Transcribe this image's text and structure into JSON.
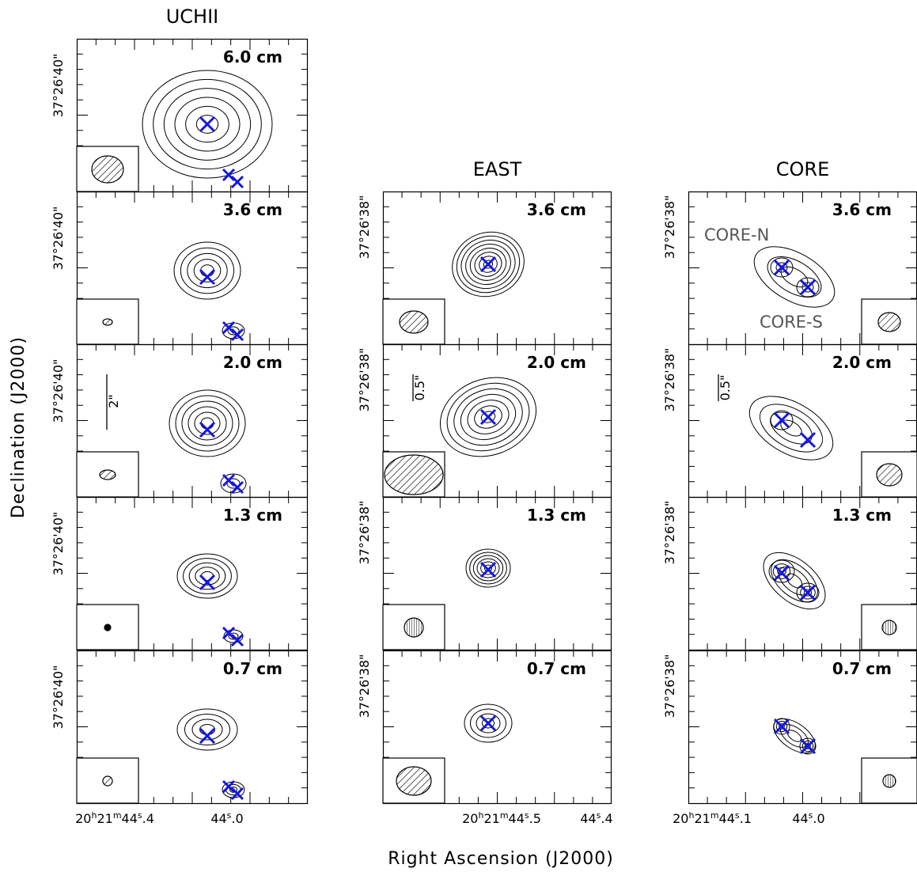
{
  "axis_labels": {
    "x": "Right Ascension (J2000)",
    "y": "Declination (J2000)"
  },
  "columns": [
    {
      "title": "UCHII",
      "dec_label": "37°26'40\"",
      "ra_labels": [
        {
          "h": "20",
          "hu": "h",
          "m": "21",
          "mu": "m",
          "s": "44",
          "su": "s",
          "frac": ".4"
        },
        {
          "s": "44",
          "su": "s",
          "frac": ".0"
        }
      ],
      "panels": [
        {
          "band": "6.0 cm"
        },
        {
          "band": "3.6 cm"
        },
        {
          "band": "2.0 cm",
          "scale_bar": "2\""
        },
        {
          "band": "1.3 cm"
        },
        {
          "band": "0.7 cm"
        }
      ]
    },
    {
      "title": "EAST",
      "dec_label": "37°26'38\"",
      "ra_labels": [
        {
          "h": "20",
          "hu": "h",
          "m": "21",
          "mu": "m",
          "s": "44",
          "su": "s",
          "frac": ".5"
        },
        {
          "s": "44",
          "su": "s",
          "frac": ".4"
        }
      ],
      "panels": [
        {
          "band": "3.6 cm"
        },
        {
          "band": "2.0 cm",
          "scale_bar": "0.5\""
        },
        {
          "band": "1.3 cm"
        },
        {
          "band": "0.7 cm"
        }
      ]
    },
    {
      "title": "CORE",
      "dec_label": "37°26'38\"",
      "ra_labels": [
        {
          "h": "20",
          "hu": "h",
          "m": "21",
          "mu": "m",
          "s": "44",
          "su": "s",
          "frac": ".1"
        },
        {
          "s": "44",
          "su": "s",
          "frac": ".0"
        }
      ],
      "panels": [
        {
          "band": "3.6 cm",
          "annotations": [
            "CORE-N",
            "CORE-S"
          ]
        },
        {
          "band": "2.0 cm",
          "scale_bar": "0.5\""
        },
        {
          "band": "1.3 cm"
        },
        {
          "band": "0.7 cm"
        }
      ]
    }
  ]
}
